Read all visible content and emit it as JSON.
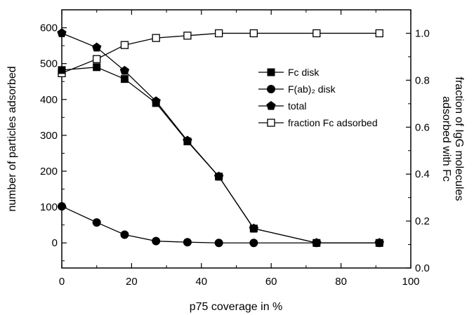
{
  "chart_data": {
    "type": "line",
    "title": "",
    "xlabel": "p75 coverage in %",
    "ylabel_left": "number of particles adsorbed",
    "ylabel_right_lines": [
      "fraction of IgG molecules",
      "adsorbed with Fc"
    ],
    "xlim": [
      0,
      100
    ],
    "ylim_left": [
      -70,
      650
    ],
    "ylim_right": [
      0.0,
      1.1
    ],
    "x_ticks": [
      0,
      20,
      40,
      60,
      80,
      100
    ],
    "y_left_ticks": [
      0,
      100,
      200,
      300,
      400,
      500,
      600
    ],
    "y_right_ticks": [
      0.0,
      0.2,
      0.4,
      0.6,
      0.8,
      1.0
    ],
    "y_right_tick_labels": [
      "0.0",
      "0.2",
      "0.4",
      "0.6",
      "0.8",
      "1.0"
    ],
    "grid": false,
    "legend_position": "center-right",
    "series": [
      {
        "name": "Fc disk",
        "axis": "left",
        "marker": "filled-square",
        "x": [
          0,
          10,
          18,
          27,
          36,
          45,
          55,
          73,
          91
        ],
        "y": [
          482,
          490,
          457,
          390,
          283,
          185,
          40,
          0,
          0
        ]
      },
      {
        "name": "F(ab)₂ disk",
        "axis": "left",
        "marker": "filled-circle",
        "x": [
          0,
          10,
          18,
          27,
          36,
          45,
          55,
          73,
          91
        ],
        "y": [
          102,
          57,
          23,
          5,
          2,
          0,
          0,
          0,
          0
        ]
      },
      {
        "name": "total",
        "axis": "left",
        "marker": "filled-pentagon",
        "x": [
          0,
          10,
          18,
          27,
          36,
          45,
          55,
          73,
          91
        ],
        "y": [
          585,
          545,
          480,
          395,
          285,
          185,
          40,
          0,
          0
        ]
      },
      {
        "name": "fraction Fc adsorbed",
        "axis": "right",
        "marker": "open-square",
        "x": [
          0,
          10,
          18,
          27,
          36,
          45,
          55,
          73,
          91
        ],
        "y": [
          0.83,
          0.89,
          0.95,
          0.98,
          0.99,
          1.0,
          1.0,
          1.0,
          1.0
        ]
      }
    ]
  }
}
